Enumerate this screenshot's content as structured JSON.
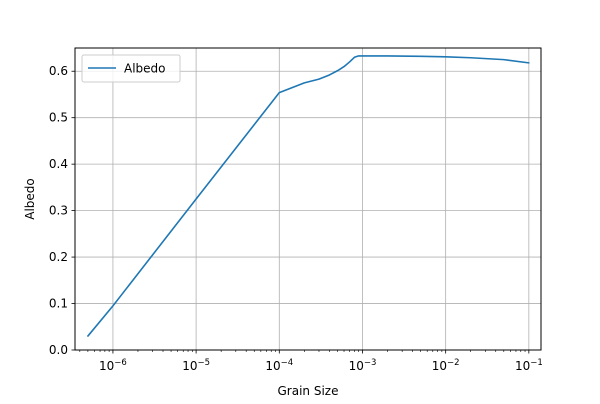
{
  "chart_data": {
    "type": "line",
    "title": "",
    "xlabel": "Grain Size",
    "ylabel": "Albedo",
    "xscale": "log",
    "xlim": [
      3.5e-07,
      0.14
    ],
    "ylim": [
      0.0,
      0.65
    ],
    "grid": true,
    "legend_placement": "top-left",
    "xticks": [
      {
        "value": 1e-06,
        "base": "10",
        "exp": "−6"
      },
      {
        "value": 1e-05,
        "base": "10",
        "exp": "−5"
      },
      {
        "value": 0.0001,
        "base": "10",
        "exp": "−4"
      },
      {
        "value": 0.001,
        "base": "10",
        "exp": "−3"
      },
      {
        "value": 0.01,
        "base": "10",
        "exp": "−2"
      },
      {
        "value": 0.1,
        "base": "10",
        "exp": "−1"
      }
    ],
    "yticks": [
      {
        "value": 0.0,
        "label": "0.0"
      },
      {
        "value": 0.1,
        "label": "0.1"
      },
      {
        "value": 0.2,
        "label": "0.2"
      },
      {
        "value": 0.3,
        "label": "0.3"
      },
      {
        "value": 0.4,
        "label": "0.4"
      },
      {
        "value": 0.5,
        "label": "0.5"
      },
      {
        "value": 0.6,
        "label": "0.6"
      }
    ],
    "series": [
      {
        "name": "Albedo",
        "color": "#1f77b4",
        "x": [
          5e-07,
          1e-06,
          1e-05,
          0.0001,
          0.0002,
          0.0003,
          0.0004,
          0.0005,
          0.0006,
          0.0007,
          0.0008,
          0.0009,
          0.001,
          0.002,
          0.005,
          0.01,
          0.02,
          0.05,
          0.1
        ],
        "y": [
          0.03,
          0.095,
          0.325,
          0.554,
          0.575,
          0.583,
          0.592,
          0.601,
          0.61,
          0.62,
          0.63,
          0.633,
          0.633,
          0.633,
          0.632,
          0.631,
          0.629,
          0.625,
          0.618
        ]
      }
    ]
  }
}
